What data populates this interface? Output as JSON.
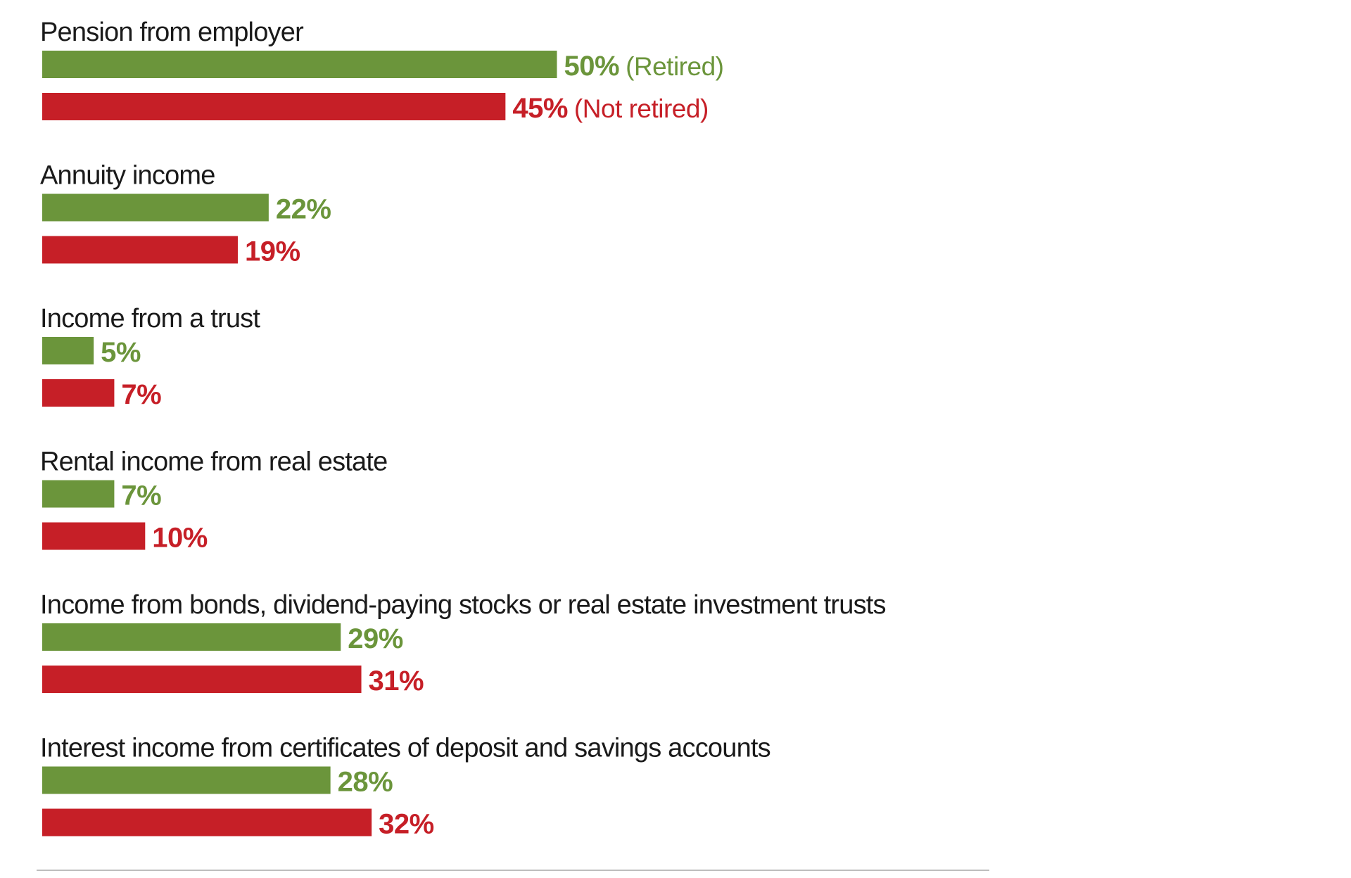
{
  "colors": {
    "retired": "#6b953b",
    "not_retired": "#c61f27",
    "label": "#1a1a1a",
    "baseline": "#bdbdbd"
  },
  "chart_data": {
    "type": "bar",
    "orientation": "horizontal",
    "title": "",
    "xlabel": "",
    "ylabel": "",
    "xlim": [
      0,
      100
    ],
    "unit": "%",
    "categories": [
      "Pension from employer",
      "Annuity income",
      "Income from a trust",
      "Rental income from real estate",
      "Income from bonds, dividend-paying stocks or real estate investment trusts",
      "Interest income from certificates of deposit and savings accounts"
    ],
    "series": [
      {
        "name": "Retired",
        "legend_label": "(Retired)",
        "color": "#6b953b",
        "values": [
          50,
          22,
          5,
          7,
          29,
          28
        ]
      },
      {
        "name": "Not retired",
        "legend_label": "(Not retired)",
        "color": "#c61f27",
        "values": [
          45,
          19,
          7,
          10,
          31,
          32
        ]
      }
    ]
  }
}
